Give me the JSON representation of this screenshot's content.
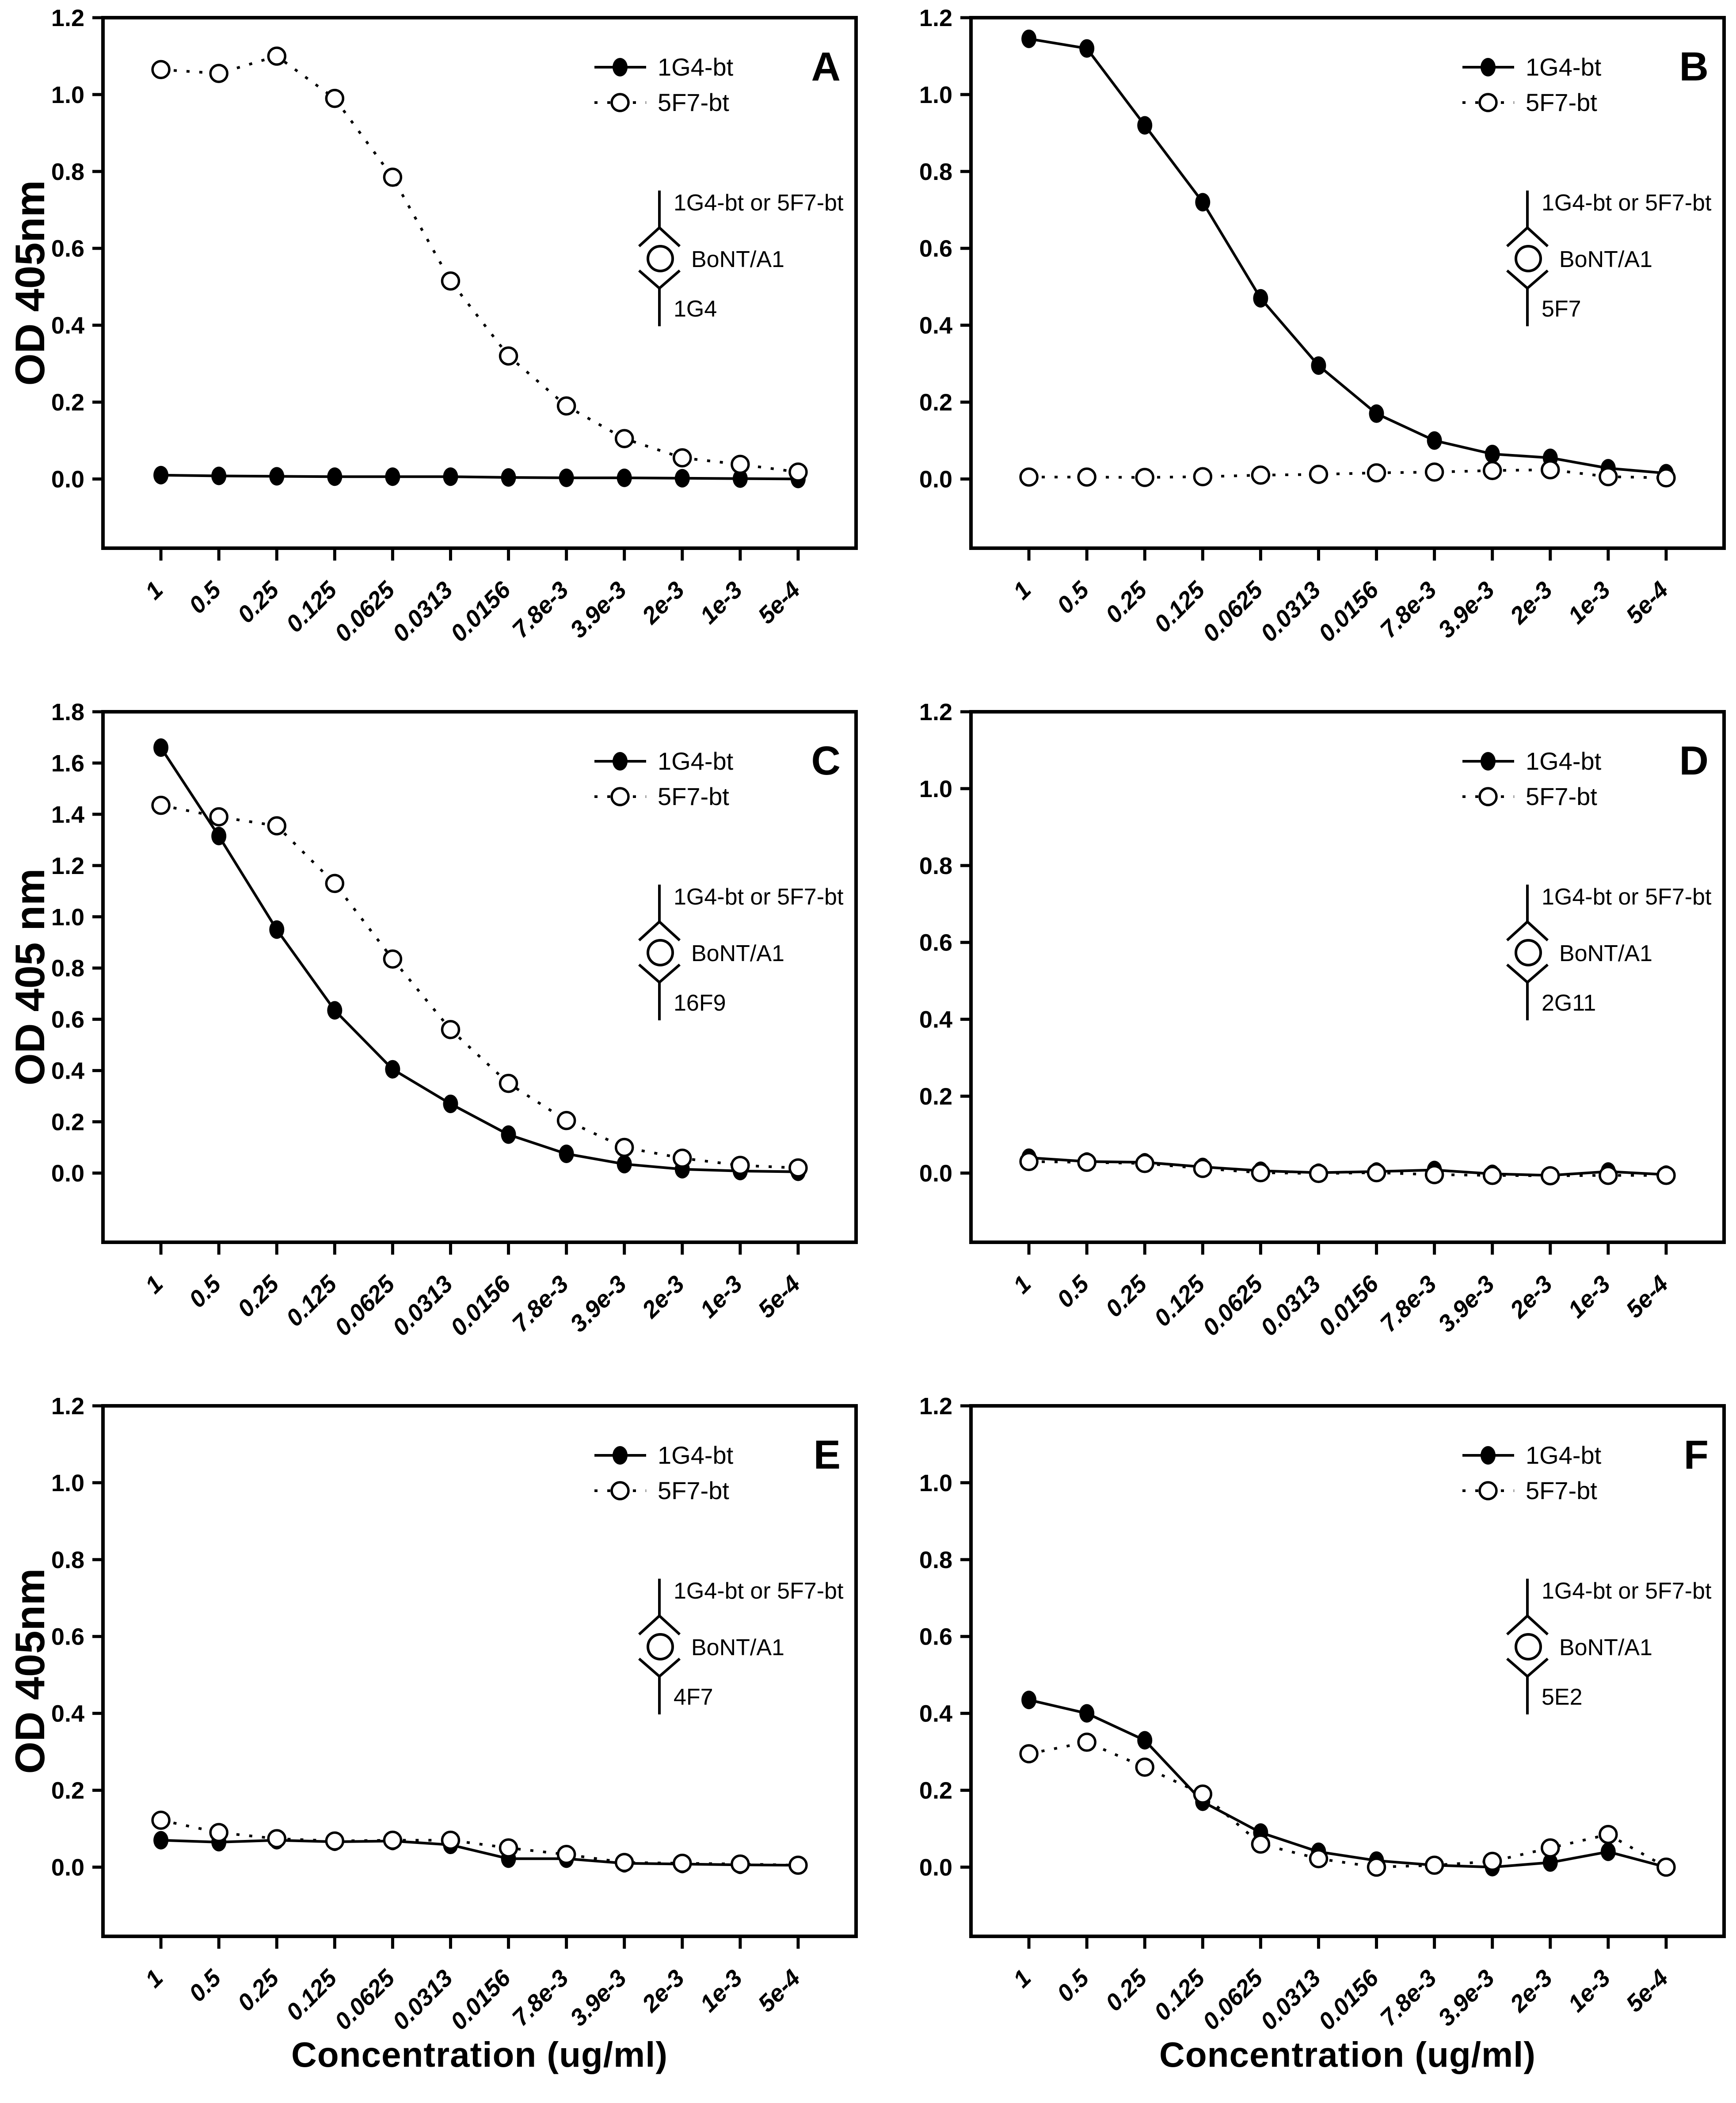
{
  "figure": {
    "ink": "#000000",
    "background": "#ffffff",
    "series_style_note": "1G4-bt = filled circle + solid line; 5F7-bt = open circle + dotted line"
  },
  "chart_data": [
    {
      "type": "line",
      "panel": "A",
      "ylabel": "OD 405nm",
      "xlabel": null,
      "ylim": [
        -0.18,
        1.2
      ],
      "ytick_step": 0.2,
      "ytick_max": 1.2,
      "grid": false,
      "legend_position": "top-right-inside",
      "categories": [
        "1",
        "0.5",
        "0.25",
        "0.125",
        "0.0625",
        "0.0313",
        "0.0156",
        "7.8e-3",
        "3.9e-3",
        "2e-3",
        "1e-3",
        "5e-4"
      ],
      "series": [
        {
          "name": "1G4-bt",
          "marker": "filled-circle",
          "line": "solid",
          "values": [
            0.01,
            0.008,
            0.007,
            0.006,
            0.006,
            0.006,
            0.004,
            0.003,
            0.003,
            0.002,
            0.001,
            0.0
          ]
        },
        {
          "name": "5F7-bt",
          "marker": "open-circle",
          "line": "dotted",
          "values": [
            1.065,
            1.055,
            1.1,
            0.99,
            0.785,
            0.515,
            0.32,
            0.19,
            0.105,
            0.055,
            0.038,
            0.018
          ]
        }
      ],
      "schematic": {
        "top": "1G4-bt or 5F7-bt",
        "middle": "BoNT/A1",
        "bottom": "1G4"
      }
    },
    {
      "type": "line",
      "panel": "B",
      "ylabel": null,
      "xlabel": null,
      "ylim": [
        -0.18,
        1.2
      ],
      "ytick_step": 0.2,
      "ytick_max": 1.2,
      "grid": false,
      "legend_position": "top-right-inside",
      "categories": [
        "1",
        "0.5",
        "0.25",
        "0.125",
        "0.0625",
        "0.0313",
        "0.0156",
        "7.8e-3",
        "3.9e-3",
        "2e-3",
        "1e-3",
        "5e-4"
      ],
      "series": [
        {
          "name": "1G4-bt",
          "marker": "filled-circle",
          "line": "solid",
          "values": [
            1.145,
            1.12,
            0.92,
            0.72,
            0.47,
            0.295,
            0.17,
            0.1,
            0.065,
            0.055,
            0.028,
            0.015
          ]
        },
        {
          "name": "5F7-bt",
          "marker": "open-circle",
          "line": "dotted",
          "values": [
            0.005,
            0.005,
            0.004,
            0.006,
            0.01,
            0.012,
            0.016,
            0.018,
            0.022,
            0.024,
            0.006,
            0.003
          ]
        }
      ],
      "schematic": {
        "top": "1G4-bt or 5F7-bt",
        "middle": "BoNT/A1",
        "bottom": "5F7"
      }
    },
    {
      "type": "line",
      "panel": "C",
      "ylabel": "OD 405 nm",
      "xlabel": null,
      "ylim": [
        -0.27,
        1.8
      ],
      "ytick_step": 0.2,
      "ytick_max": 1.8,
      "grid": false,
      "legend_position": "top-right-inside",
      "categories": [
        "1",
        "0.5",
        "0.25",
        "0.125",
        "0.0625",
        "0.0313",
        "0.0156",
        "7.8e-3",
        "3.9e-3",
        "2e-3",
        "1e-3",
        "5e-4"
      ],
      "series": [
        {
          "name": "1G4-bt",
          "marker": "filled-circle",
          "line": "solid",
          "values": [
            1.66,
            1.315,
            0.95,
            0.635,
            0.405,
            0.27,
            0.15,
            0.075,
            0.035,
            0.015,
            0.008,
            0.005
          ]
        },
        {
          "name": "5F7-bt",
          "marker": "open-circle",
          "line": "dotted",
          "values": [
            1.435,
            1.39,
            1.355,
            1.13,
            0.835,
            0.56,
            0.35,
            0.205,
            0.1,
            0.058,
            0.03,
            0.02
          ]
        }
      ],
      "schematic": {
        "top": "1G4-bt or 5F7-bt",
        "middle": "BoNT/A1",
        "bottom": "16F9"
      }
    },
    {
      "type": "line",
      "panel": "D",
      "ylabel": null,
      "xlabel": null,
      "ylim": [
        -0.18,
        1.2
      ],
      "ytick_step": 0.2,
      "ytick_max": 1.2,
      "grid": false,
      "legend_position": "top-right-inside",
      "categories": [
        "1",
        "0.5",
        "0.25",
        "0.125",
        "0.0625",
        "0.0313",
        "0.0156",
        "7.8e-3",
        "3.9e-3",
        "2e-3",
        "1e-3",
        "5e-4"
      ],
      "series": [
        {
          "name": "1G4-bt",
          "marker": "filled-circle",
          "line": "solid",
          "values": [
            0.04,
            0.03,
            0.028,
            0.016,
            0.006,
            0.001,
            0.004,
            0.008,
            -0.002,
            -0.006,
            0.004,
            -0.004
          ]
        },
        {
          "name": "5F7-bt",
          "marker": "open-circle",
          "line": "dotted",
          "values": [
            0.03,
            0.028,
            0.025,
            0.012,
            0.001,
            -0.001,
            0.001,
            -0.004,
            -0.006,
            -0.007,
            -0.006,
            -0.006
          ]
        }
      ],
      "schematic": {
        "top": "1G4-bt or 5F7-bt",
        "middle": "BoNT/A1",
        "bottom": "2G11"
      }
    },
    {
      "type": "line",
      "panel": "E",
      "ylabel": "OD 405nm",
      "xlabel": "Concentration (ug/ml)",
      "ylim": [
        -0.18,
        1.2
      ],
      "ytick_step": 0.2,
      "ytick_max": 1.2,
      "grid": false,
      "legend_position": "top-right-inside",
      "categories": [
        "1",
        "0.5",
        "0.25",
        "0.125",
        "0.0625",
        "0.0313",
        "0.0156",
        "7.8e-3",
        "3.9e-3",
        "2e-3",
        "1e-3",
        "5e-4"
      ],
      "series": [
        {
          "name": "1G4-bt",
          "marker": "filled-circle",
          "line": "solid",
          "values": [
            0.07,
            0.065,
            0.07,
            0.066,
            0.068,
            0.058,
            0.022,
            0.022,
            0.01,
            0.008,
            0.006,
            0.005
          ]
        },
        {
          "name": "5F7-bt",
          "marker": "open-circle",
          "line": "dotted",
          "values": [
            0.122,
            0.09,
            0.074,
            0.068,
            0.07,
            0.07,
            0.05,
            0.033,
            0.012,
            0.01,
            0.008,
            0.005
          ]
        }
      ],
      "schematic": {
        "top": "1G4-bt or 5F7-bt",
        "middle": "BoNT/A1",
        "bottom": "4F7"
      }
    },
    {
      "type": "line",
      "panel": "F",
      "ylabel": null,
      "xlabel": "Concentration (ug/ml)",
      "ylim": [
        -0.18,
        1.2
      ],
      "ytick_step": 0.2,
      "ytick_max": 1.2,
      "grid": false,
      "legend_position": "top-right-inside",
      "categories": [
        "1",
        "0.5",
        "0.25",
        "0.125",
        "0.0625",
        "0.0313",
        "0.0156",
        "7.8e-3",
        "3.9e-3",
        "2e-3",
        "1e-3",
        "5e-4"
      ],
      "series": [
        {
          "name": "1G4-bt",
          "marker": "filled-circle",
          "line": "solid",
          "values": [
            0.435,
            0.4,
            0.33,
            0.17,
            0.09,
            0.04,
            0.017,
            0.005,
            0.0,
            0.012,
            0.04,
            0.0
          ]
        },
        {
          "name": "5F7-bt",
          "marker": "open-circle",
          "line": "dotted",
          "values": [
            0.295,
            0.325,
            0.26,
            0.19,
            0.06,
            0.022,
            0.0,
            0.005,
            0.015,
            0.05,
            0.085,
            0.0
          ]
        }
      ],
      "schematic": {
        "top": "1G4-bt or 5F7-bt",
        "middle": "BoNT/A1",
        "bottom": "5E2"
      }
    }
  ]
}
